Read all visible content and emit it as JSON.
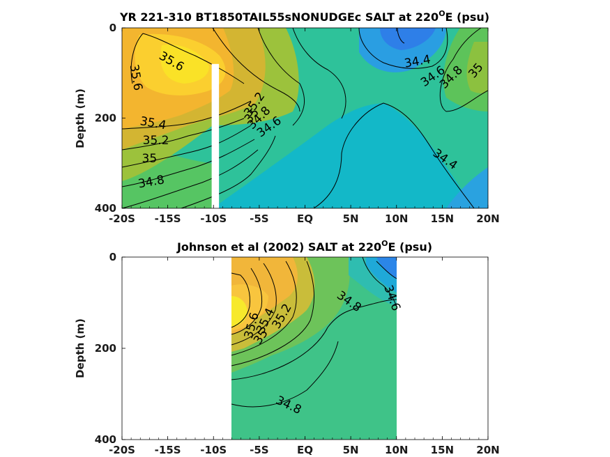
{
  "chart_data": [
    {
      "type": "contour",
      "title": "YR 221-310 BT1850TAIL55sNONUDGEc SALT at 220",
      "title_sup": "O",
      "title_tail": "E (psu)",
      "ylabel": "Depth (m)",
      "x_ticks": [
        "-20S",
        "-15S",
        "-10S",
        "-5S",
        "EQ",
        "5N",
        "10N",
        "15N",
        "20N"
      ],
      "x_range": [
        -20,
        20
      ],
      "y_ticks": [
        "0",
        "200",
        "400"
      ],
      "y_range": [
        0,
        400
      ],
      "y_reversed": true,
      "colormap": "parula",
      "missing_band_lat": [
        -10.2,
        -9.4
      ],
      "missing_band_depth": [
        80,
        400
      ],
      "contour_labels": [
        {
          "text": "35.6",
          "lat": -18.5,
          "depth": 110,
          "rot": 80
        },
        {
          "text": "35.6",
          "lat": -14.6,
          "depth": 75,
          "rot": 30
        },
        {
          "text": "35.4",
          "lat": -16.6,
          "depth": 212,
          "rot": 10
        },
        {
          "text": "35.2",
          "lat": -16.3,
          "depth": 250,
          "rot": 0
        },
        {
          "text": "35",
          "lat": -17.0,
          "depth": 290,
          "rot": 0
        },
        {
          "text": "34.8",
          "lat": -16.8,
          "depth": 342,
          "rot": -10
        },
        {
          "text": "35.2",
          "lat": -5.5,
          "depth": 170,
          "rot": -55
        },
        {
          "text": "35",
          "lat": -5.8,
          "depth": 195,
          "rot": -50
        },
        {
          "text": "34.8",
          "lat": -5.0,
          "depth": 200,
          "rot": -45
        },
        {
          "text": "34.6",
          "lat": -3.9,
          "depth": 220,
          "rot": -35
        },
        {
          "text": "34.4",
          "lat": 12.3,
          "depth": 75,
          "rot": -10
        },
        {
          "text": "34.6",
          "lat": 14.0,
          "depth": 108,
          "rot": -35
        },
        {
          "text": "34.8",
          "lat": 16.0,
          "depth": 110,
          "rot": -45
        },
        {
          "text": "35",
          "lat": 18.7,
          "depth": 95,
          "rot": -50
        },
        {
          "text": "34.4",
          "lat": 15.3,
          "depth": 292,
          "rot": 35
        }
      ]
    },
    {
      "type": "contour",
      "title": "Johnson et al (2002) SALT at 220",
      "title_sup": "O",
      "title_tail": "E (psu)",
      "ylabel": "Depth (m)",
      "x_ticks": [
        "-20S",
        "-15S",
        "-10S",
        "-5S",
        "EQ",
        "5N",
        "10N",
        "15N",
        "20N"
      ],
      "x_range": [
        -20,
        20
      ],
      "y_ticks": [
        "0",
        "200",
        "400"
      ],
      "y_range": [
        0,
        400
      ],
      "y_reversed": true,
      "colormap": "parula",
      "data_lat_range": [
        -8,
        10
      ],
      "contour_labels": [
        {
          "text": "35.6",
          "lat": -5.8,
          "depth": 150,
          "rot": -75
        },
        {
          "text": "35.4",
          "lat": -4.3,
          "depth": 140,
          "rot": -65
        },
        {
          "text": "35.2",
          "lat": -2.5,
          "depth": 130,
          "rot": -60
        },
        {
          "text": "35",
          "lat": -4.8,
          "depth": 175,
          "rot": -55
        },
        {
          "text": "34.8",
          "lat": 4.8,
          "depth": 98,
          "rot": 35
        },
        {
          "text": "34.6",
          "lat": 9.5,
          "depth": 90,
          "rot": 70
        },
        {
          "text": "34.8",
          "lat": -1.8,
          "depth": 325,
          "rot": 25
        }
      ]
    }
  ]
}
